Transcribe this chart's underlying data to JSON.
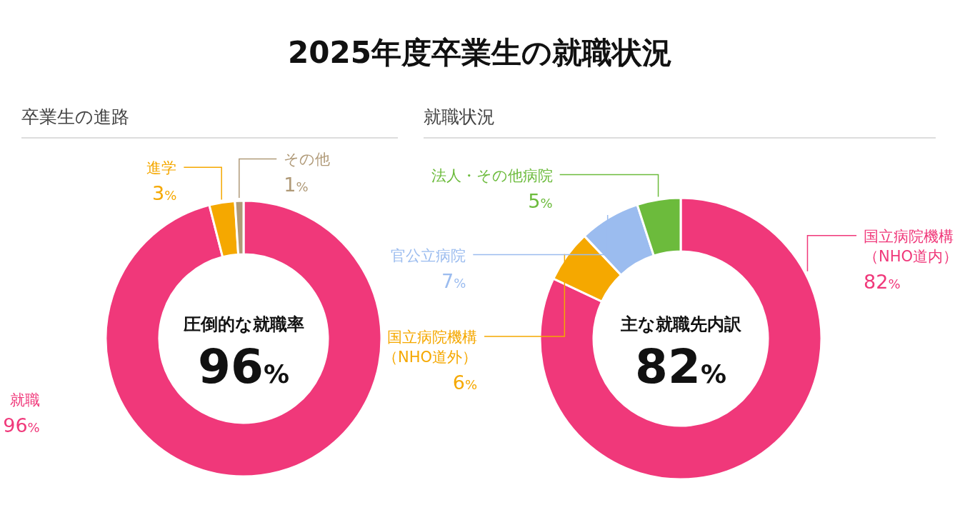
{
  "chart_data": [
    {
      "type": "donut",
      "title": "2025年度卒業生の就職状況",
      "subtitle": "卒業生の進路",
      "categories": [
        "就職",
        "進学",
        "その他"
      ],
      "values": [
        96,
        3,
        1
      ],
      "colors": [
        "#f0387a",
        "#f5a800",
        "#b09a78"
      ],
      "value_labels": [
        "96%",
        "3%",
        "1%"
      ],
      "annotations": [
        "圧倒的な就職率",
        "96%"
      ]
    },
    {
      "type": "donut",
      "subtitle": "就職状況",
      "categories": [
        "国立病院機構（NHO道内）",
        "国立病院機構（NHO道外）",
        "官公立病院",
        "法人・その他病院"
      ],
      "values": [
        82,
        6,
        7,
        5
      ],
      "colors": [
        "#f0387a",
        "#f5a800",
        "#9bbcef",
        "#6cbb3c"
      ],
      "value_labels": [
        "82%",
        "6%",
        "7%",
        "5%"
      ],
      "annotations": [
        "主な就職先内訳",
        "82%"
      ]
    }
  ]
}
